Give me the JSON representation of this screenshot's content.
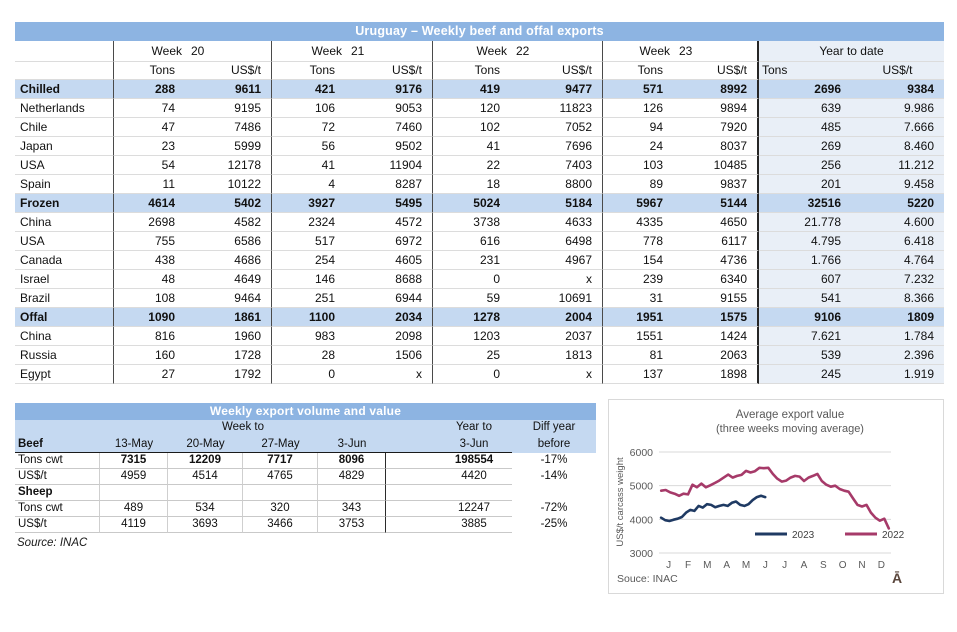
{
  "table1": {
    "title": "Uruguay – Weekly beef and offal exports",
    "week_label": "Week",
    "week_numbers": [
      "20",
      "21",
      "22",
      "23"
    ],
    "ytd_label": "Year to date",
    "tons_label": "Tons",
    "usd_label": "US$/t",
    "rows": [
      {
        "label": "Chilled",
        "type": "section",
        "cells": [
          "288",
          "9611",
          "421",
          "9176",
          "419",
          "9477",
          "571",
          "8992",
          "2696",
          "9384"
        ]
      },
      {
        "label": "Netherlands",
        "type": "data",
        "cells": [
          "74",
          "9195",
          "106",
          "9053",
          "120",
          "11823",
          "126",
          "9894",
          "639",
          "9.986"
        ]
      },
      {
        "label": "Chile",
        "type": "data",
        "cells": [
          "47",
          "7486",
          "72",
          "7460",
          "102",
          "7052",
          "94",
          "7920",
          "485",
          "7.666"
        ]
      },
      {
        "label": "Japan",
        "type": "data",
        "cells": [
          "23",
          "5999",
          "56",
          "9502",
          "41",
          "7696",
          "24",
          "8037",
          "269",
          "8.460"
        ]
      },
      {
        "label": "USA",
        "type": "data",
        "cells": [
          "54",
          "12178",
          "41",
          "11904",
          "22",
          "7403",
          "103",
          "10485",
          "256",
          "11.212"
        ]
      },
      {
        "label": "Spain",
        "type": "data",
        "cells": [
          "11",
          "10122",
          "4",
          "8287",
          "18",
          "8800",
          "89",
          "9837",
          "201",
          "9.458"
        ]
      },
      {
        "label": "Frozen",
        "type": "section",
        "cells": [
          "4614",
          "5402",
          "3927",
          "5495",
          "5024",
          "5184",
          "5967",
          "5144",
          "32516",
          "5220"
        ]
      },
      {
        "label": "China",
        "type": "data",
        "cells": [
          "2698",
          "4582",
          "2324",
          "4572",
          "3738",
          "4633",
          "4335",
          "4650",
          "21.778",
          "4.600"
        ]
      },
      {
        "label": "USA",
        "type": "data",
        "cells": [
          "755",
          "6586",
          "517",
          "6972",
          "616",
          "6498",
          "778",
          "6117",
          "4.795",
          "6.418"
        ]
      },
      {
        "label": "Canada",
        "type": "data",
        "cells": [
          "438",
          "4686",
          "254",
          "4605",
          "231",
          "4967",
          "154",
          "4736",
          "1.766",
          "4.764"
        ]
      },
      {
        "label": "Israel",
        "type": "data",
        "cells": [
          "48",
          "4649",
          "146",
          "8688",
          "0",
          "x",
          "239",
          "6340",
          "607",
          "7.232"
        ]
      },
      {
        "label": "Brazil",
        "type": "data",
        "cells": [
          "108",
          "9464",
          "251",
          "6944",
          "59",
          "10691",
          "31",
          "9155",
          "541",
          "8.366"
        ]
      },
      {
        "label": "Offal",
        "type": "section",
        "cells": [
          "1090",
          "1861",
          "1100",
          "2034",
          "1278",
          "2004",
          "1951",
          "1575",
          "9106",
          "1809"
        ]
      },
      {
        "label": "China",
        "type": "data",
        "cells": [
          "816",
          "1960",
          "983",
          "2098",
          "1203",
          "2037",
          "1551",
          "1424",
          "7.621",
          "1.784"
        ]
      },
      {
        "label": "Russia",
        "type": "data",
        "cells": [
          "160",
          "1728",
          "28",
          "1506",
          "25",
          "1813",
          "81",
          "2063",
          "539",
          "2.396"
        ]
      },
      {
        "label": "Egypt",
        "type": "data",
        "cells": [
          "27",
          "1792",
          "0",
          "x",
          "0",
          "x",
          "137",
          "1898",
          "245",
          "1.919"
        ]
      }
    ]
  },
  "table2": {
    "title": "Weekly export volume and value",
    "week_to_label": "Week to",
    "year_to_label": "Year to",
    "diff_label": "Diff year",
    "header_cols": [
      "Beef",
      "13-May",
      "20-May",
      "27-May",
      "3-Jun",
      "3-Jun",
      "before"
    ],
    "rows": [
      {
        "label": "Tons cwt",
        "type": "data",
        "bold_values": true,
        "cells": [
          "7315",
          "12209",
          "7717",
          "8096",
          "198554",
          "-17%"
        ]
      },
      {
        "label": "US$/t",
        "type": "data",
        "bold_values": false,
        "cells": [
          "4959",
          "4514",
          "4765",
          "4829",
          "4420",
          "-14%"
        ]
      },
      {
        "label": "Sheep",
        "type": "section",
        "bold_values": false,
        "cells": [
          "",
          "",
          "",
          "",
          "",
          ""
        ]
      },
      {
        "label": "Tons cwt",
        "type": "data",
        "bold_values": false,
        "cells": [
          "489",
          "534",
          "320",
          "343",
          "12247",
          "-72%"
        ]
      },
      {
        "label": "US$/t",
        "type": "data",
        "bold_values": false,
        "cells": [
          "4119",
          "3693",
          "3466",
          "3753",
          "3885",
          "-25%"
        ]
      }
    ],
    "source": "Source: INAC"
  },
  "chart_data": {
    "type": "line",
    "title": "Average export value",
    "subtitle": "(three weeks moving average)",
    "ylabel": "US$/t carcass weight",
    "ylim": [
      3000,
      6000
    ],
    "yticks": [
      3000,
      4000,
      5000,
      6000
    ],
    "x_tick_labels": [
      "J",
      "F",
      "M",
      "A",
      "M",
      "J",
      "J",
      "A",
      "S",
      "O",
      "N",
      "D"
    ],
    "grid": "horizontal",
    "legend_position": "inside-bottom",
    "source": "Souce: INAC",
    "logo_glyph": "Ā",
    "series": [
      {
        "name": "2023",
        "color": "#1F3A63",
        "span_months": 5.6,
        "values": [
          4050,
          3975,
          3950,
          3990,
          4020,
          4070,
          4200,
          4280,
          4250,
          4400,
          4350,
          4450,
          4430,
          4360,
          4400,
          4430,
          4400,
          4490,
          4530,
          4430,
          4400,
          4450,
          4570,
          4660,
          4700,
          4660
        ]
      },
      {
        "name": "2022",
        "color": "#A63A69",
        "span_months": 12,
        "values": [
          4850,
          4870,
          4800,
          4760,
          4700,
          4760,
          4740,
          5030,
          4950,
          5060,
          4950,
          5010,
          5080,
          5150,
          5240,
          5330,
          5240,
          5290,
          5320,
          5440,
          5390,
          5430,
          5530,
          5520,
          5530,
          5350,
          5210,
          5120,
          5150,
          5240,
          5290,
          5270,
          5140,
          5240,
          5290,
          5350,
          5140,
          5030,
          4970,
          5000,
          4900,
          4850,
          4820,
          4620,
          4430,
          4380,
          4430,
          4200,
          4050,
          3960,
          4020,
          3730
        ]
      }
    ],
    "colors": {
      "axis_text": "#595959",
      "gridline": "#D9D9D9",
      "legend_text": "#404040",
      "logo": "#5A463C"
    }
  }
}
